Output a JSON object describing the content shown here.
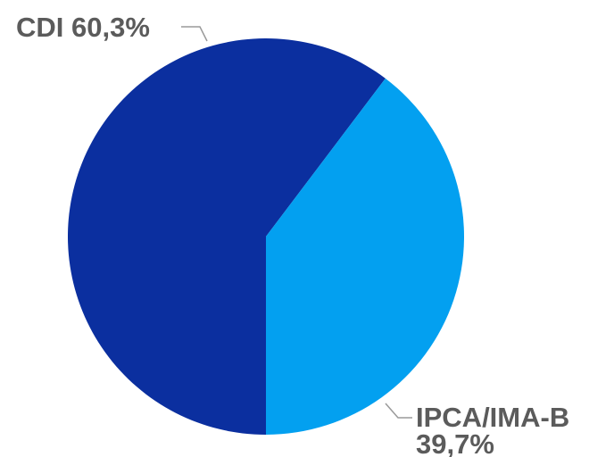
{
  "chart_data": {
    "type": "pie",
    "categories": [
      "CDI",
      "IPCA/IMA-B"
    ],
    "values": [
      60.3,
      39.7
    ],
    "value_labels": [
      "60,3%",
      "39,7%"
    ],
    "colors": [
      "#0b2f9f",
      "#03a0f0"
    ]
  }
}
